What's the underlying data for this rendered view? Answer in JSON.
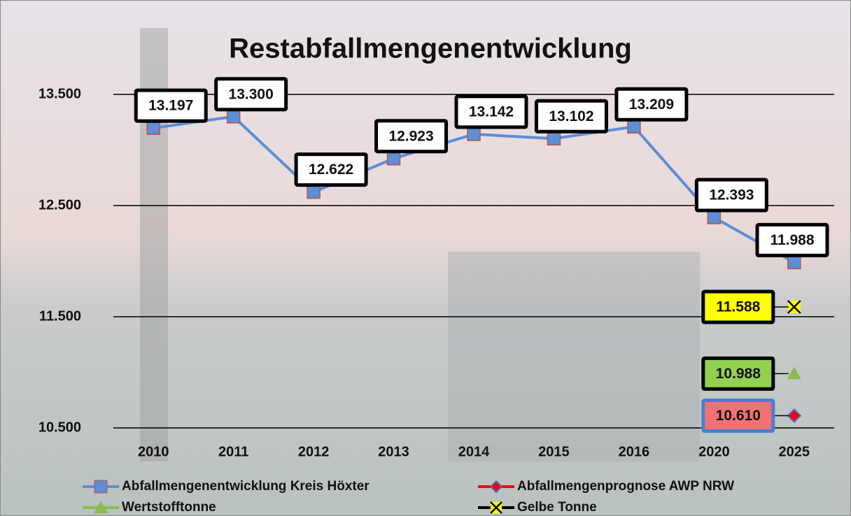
{
  "chart_data": {
    "type": "line",
    "title": "Restabfallmengenentwicklung",
    "categories": [
      "2010",
      "2011",
      "2012",
      "2013",
      "2014",
      "2015",
      "2016",
      "2020",
      "2025"
    ],
    "ylim": [
      10500,
      13500
    ],
    "yticks": [
      {
        "value": 10500,
        "label": "10.500"
      },
      {
        "value": 11500,
        "label": "11.500"
      },
      {
        "value": 12500,
        "label": "12.500"
      },
      {
        "value": 13500,
        "label": "13.500"
      }
    ],
    "grid": true,
    "series": [
      {
        "name": "Abfallmengenentwicklung Kreis Höxter",
        "color": "#5b8fd6",
        "marker": "square",
        "label_fill": "#ffffff",
        "values": [
          13197,
          13300,
          12622,
          12923,
          13142,
          13102,
          13209,
          12393,
          11988
        ],
        "value_labels": [
          "13.197",
          "13.300",
          "12.622",
          "12.923",
          "13.142",
          "13.102",
          "13.209",
          "12.393",
          "11.988"
        ]
      },
      {
        "name": "Abfallmengenprognose AWP NRW",
        "color": "#ff0000",
        "marker": "diamond",
        "label_fill": "#f27272",
        "values": [
          null,
          null,
          null,
          null,
          null,
          null,
          null,
          null,
          10610
        ],
        "value_labels": [
          null,
          null,
          null,
          null,
          null,
          null,
          null,
          null,
          "10.610"
        ]
      },
      {
        "name": "Wertstofftonne",
        "color": "#8dbb4e",
        "marker": "triangle",
        "label_fill": "#92d050",
        "values": [
          null,
          null,
          null,
          null,
          null,
          null,
          null,
          null,
          10988
        ],
        "value_labels": [
          null,
          null,
          null,
          null,
          null,
          null,
          null,
          null,
          "10.988"
        ]
      },
      {
        "name": "Gelbe Tonne",
        "color": "#000000",
        "marker": "x",
        "label_fill": "#ffff00",
        "values": [
          null,
          null,
          null,
          null,
          null,
          null,
          null,
          null,
          11588
        ],
        "value_labels": [
          null,
          null,
          null,
          null,
          null,
          null,
          null,
          null,
          "11.588"
        ]
      }
    ]
  }
}
